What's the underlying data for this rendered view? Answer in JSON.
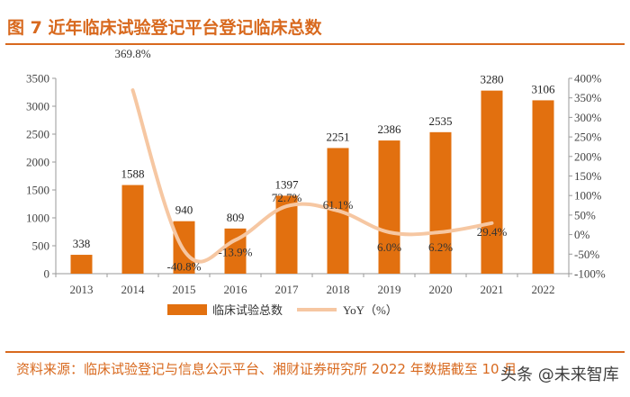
{
  "header": {
    "title": "图 7 近年临床试验登记平台登记临床总数"
  },
  "footer": {
    "source": "资料来源：临床试验登记与信息公示平台、湘财证券研究所 2022 年数据截至 10 月"
  },
  "watermark": {
    "text": "头条 @未来智库"
  },
  "colors": {
    "accent": "#d8691e",
    "bar": "#e2700f",
    "line": "#f6c7a2"
  },
  "chart_data": {
    "type": "bar",
    "title": "近年临床试验登记平台登记临床总数",
    "categories": [
      "2013",
      "2014",
      "2015",
      "2016",
      "2017",
      "2018",
      "2019",
      "2020",
      "2021",
      "2022"
    ],
    "series": [
      {
        "name": "临床试验总数",
        "type": "bar",
        "axis": "left",
        "values": [
          338,
          1588,
          940,
          809,
          1397,
          2251,
          2386,
          2535,
          3280,
          3106
        ]
      },
      {
        "name": "YoY（%）",
        "type": "line",
        "axis": "right",
        "values": [
          null,
          369.8,
          -40.8,
          -13.9,
          72.7,
          61.1,
          6.0,
          6.2,
          29.4,
          null
        ]
      }
    ],
    "bar_labels": [
      "338",
      "1588",
      "940",
      "809",
      "1397",
      "2251",
      "2386",
      "2535",
      "3280",
      "3106"
    ],
    "line_labels": [
      "",
      "369.8%",
      "-40.8%",
      "-13.9%",
      "72.7%",
      "61.1%",
      "6.0%",
      "6.2%",
      "29.4%",
      ""
    ],
    "ylim_left": [
      0,
      3500
    ],
    "yticks_left": [
      0,
      500,
      1000,
      1500,
      2000,
      2500,
      3000,
      3500
    ],
    "ylim_right": [
      -100,
      400
    ],
    "yticks_right": [
      "-100%",
      "-50%",
      "0%",
      "50%",
      "100%",
      "150%",
      "200%",
      "250%",
      "300%",
      "350%",
      "400%"
    ],
    "legend": [
      "临床试验总数",
      "YoY（%）"
    ],
    "legend_position": "bottom"
  }
}
